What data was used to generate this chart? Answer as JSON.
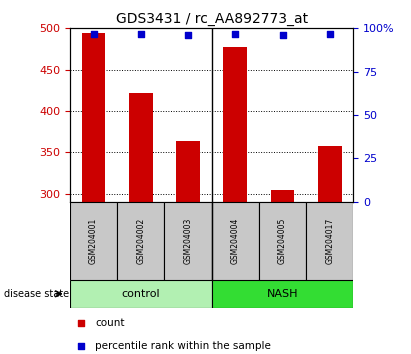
{
  "title": "GDS3431 / rc_AA892773_at",
  "samples": [
    "GSM204001",
    "GSM204002",
    "GSM204003",
    "GSM204004",
    "GSM204005",
    "GSM204017"
  ],
  "counts": [
    494,
    422,
    363,
    477,
    304,
    358
  ],
  "percentile_ranks": [
    97,
    97,
    96,
    97,
    96,
    97
  ],
  "ylim_left": [
    290,
    500
  ],
  "ylim_right": [
    0,
    100
  ],
  "yticks_left": [
    300,
    350,
    400,
    450,
    500
  ],
  "yticks_right": [
    0,
    25,
    50,
    75,
    100
  ],
  "bar_color": "#cc0000",
  "dot_color": "#0000cc",
  "bar_bottom": 290,
  "groups": [
    {
      "label": "control",
      "start": 0,
      "end": 3,
      "color": "#b2f0b2"
    },
    {
      "label": "NASH",
      "start": 3,
      "end": 6,
      "color": "#33dd33"
    }
  ],
  "group_label_prefix": "disease state",
  "tick_color_left": "#cc0000",
  "tick_color_right": "#0000cc",
  "legend_count_label": "count",
  "legend_pct_label": "percentile rank within the sample",
  "background_color": "#ffffff",
  "tick_bg_color": "#c8c8c8",
  "title_fontsize": 10
}
